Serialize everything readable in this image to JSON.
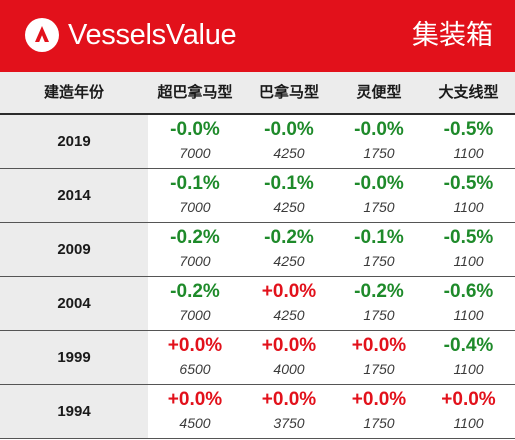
{
  "header": {
    "brand": "VesselsValue",
    "category": "集装箱",
    "accent": "#e2111b",
    "logo_icon": "vesselsvalue-logo"
  },
  "table": {
    "columns": [
      "建造年份",
      "超巴拿马型",
      "巴拿马型",
      "灵便型",
      "大支线型"
    ],
    "rows": [
      {
        "year": "2019",
        "cells": [
          {
            "pct": "-0.0%",
            "dir": "neg",
            "price": "7000"
          },
          {
            "pct": "-0.0%",
            "dir": "neg",
            "price": "4250"
          },
          {
            "pct": "-0.0%",
            "dir": "neg",
            "price": "1750"
          },
          {
            "pct": "-0.5%",
            "dir": "neg",
            "price": "1100"
          }
        ]
      },
      {
        "year": "2014",
        "cells": [
          {
            "pct": "-0.1%",
            "dir": "neg",
            "price": "7000"
          },
          {
            "pct": "-0.1%",
            "dir": "neg",
            "price": "4250"
          },
          {
            "pct": "-0.0%",
            "dir": "neg",
            "price": "1750"
          },
          {
            "pct": "-0.5%",
            "dir": "neg",
            "price": "1100"
          }
        ]
      },
      {
        "year": "2009",
        "cells": [
          {
            "pct": "-0.2%",
            "dir": "neg",
            "price": "7000"
          },
          {
            "pct": "-0.2%",
            "dir": "neg",
            "price": "4250"
          },
          {
            "pct": "-0.1%",
            "dir": "neg",
            "price": "1750"
          },
          {
            "pct": "-0.5%",
            "dir": "neg",
            "price": "1100"
          }
        ]
      },
      {
        "year": "2004",
        "cells": [
          {
            "pct": "-0.2%",
            "dir": "neg",
            "price": "7000"
          },
          {
            "pct": "+0.0%",
            "dir": "pos",
            "price": "4250"
          },
          {
            "pct": "-0.2%",
            "dir": "neg",
            "price": "1750"
          },
          {
            "pct": "-0.6%",
            "dir": "neg",
            "price": "1100"
          }
        ]
      },
      {
        "year": "1999",
        "cells": [
          {
            "pct": "+0.0%",
            "dir": "pos",
            "price": "6500"
          },
          {
            "pct": "+0.0%",
            "dir": "pos",
            "price": "4000"
          },
          {
            "pct": "+0.0%",
            "dir": "pos",
            "price": "1750"
          },
          {
            "pct": "-0.4%",
            "dir": "neg",
            "price": "1100"
          }
        ]
      },
      {
        "year": "1994",
        "cells": [
          {
            "pct": "+0.0%",
            "dir": "pos",
            "price": "4500"
          },
          {
            "pct": "+0.0%",
            "dir": "pos",
            "price": "3750"
          },
          {
            "pct": "+0.0%",
            "dir": "pos",
            "price": "1750"
          },
          {
            "pct": "+0.0%",
            "dir": "pos",
            "price": "1100"
          }
        ]
      }
    ]
  }
}
